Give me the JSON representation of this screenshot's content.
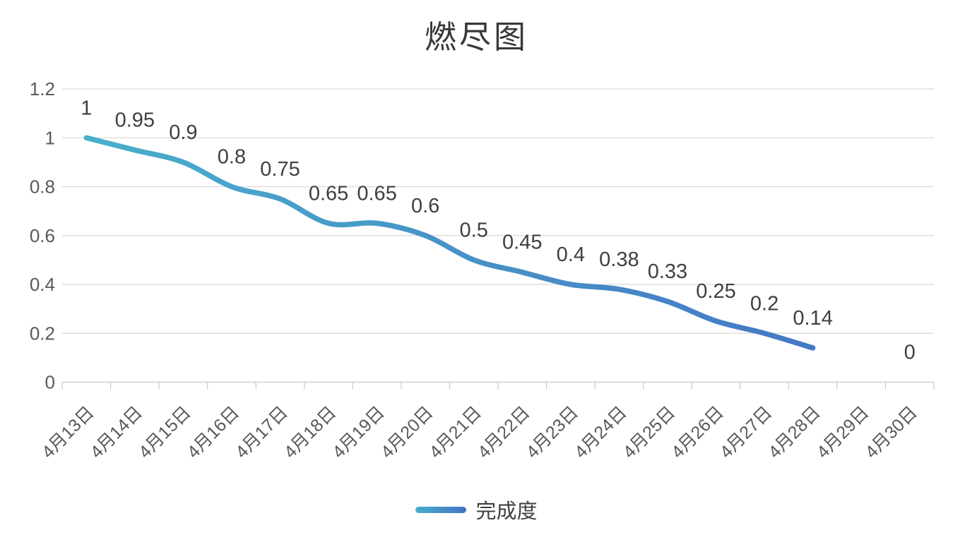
{
  "chart_data": {
    "type": "line",
    "title": "燃尽图",
    "categories": [
      "4月13日",
      "4月14日",
      "4月15日",
      "4月16日",
      "4月17日",
      "4月18日",
      "4月19日",
      "4月20日",
      "4月21日",
      "4月22日",
      "4月23日",
      "4月24日",
      "4月25日",
      "4月26日",
      "4月27日",
      "4月28日",
      "4月29日",
      "4月30日"
    ],
    "series": [
      {
        "name": "完成度",
        "values": [
          1,
          0.95,
          0.9,
          0.8,
          0.75,
          0.65,
          0.65,
          0.6,
          0.5,
          0.45,
          0.4,
          0.38,
          0.33,
          0.25,
          0.2,
          0.14,
          null,
          0
        ],
        "data_labels": [
          "1",
          "0.95",
          "0.9",
          "0.8",
          "0.75",
          "0.65",
          "0.65",
          "0.6",
          "0.5",
          "0.45",
          "0.4",
          "0.38",
          "0.33",
          "0.25",
          "0.2",
          "0.14",
          "",
          "0"
        ]
      }
    ],
    "ylim": [
      0,
      1.2
    ],
    "ytick_step": 0.2,
    "yticks": [
      "0",
      "0.2",
      "0.4",
      "0.6",
      "0.8",
      "1",
      "1.2"
    ],
    "grid": true,
    "smooth": true,
    "legend_position": "bottom",
    "colors": {
      "line_gradient_start": "#49AECB",
      "line_gradient_end": "#4472C4",
      "gridline": "#D9D9D9",
      "axis": "#C9C9C9",
      "axis_label": "#595959",
      "data_label": "#3F3F3F",
      "title": "#383838"
    }
  }
}
